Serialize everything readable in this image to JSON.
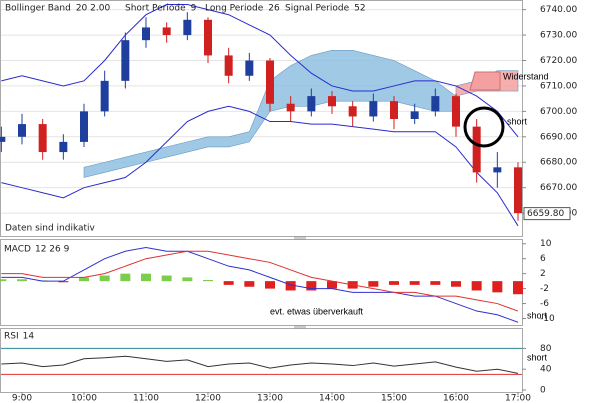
{
  "chart_data": [
    {
      "type": "candlestick",
      "header": [
        {
          "label": "Bollinger Band",
          "params": "20  2.00"
        },
        {
          "label": "Short Periode",
          "params": "9"
        },
        {
          "label": "Long Periode",
          "params": "26"
        },
        {
          "label": "Signal Periode",
          "params": "52"
        }
      ],
      "footnote": "Daten sind indikativ",
      "categories": [
        null,
        "9:00",
        null,
        null,
        "10:00",
        null,
        null,
        "11:00",
        null,
        null,
        "12:00",
        null,
        null,
        "13:00",
        null,
        null,
        "14:00",
        null,
        null,
        "15:00",
        null,
        null,
        "16:00",
        null,
        null,
        "17:00"
      ],
      "open": [
        6688,
        6690,
        6695,
        6684,
        6688,
        6700,
        6712,
        6728,
        6733,
        6730,
        6736,
        6722,
        6714,
        6720,
        6703,
        6700,
        6706,
        6702,
        6698,
        6704,
        6697,
        6700,
        6706,
        6694,
        6676,
        6678
      ],
      "high": [
        6694,
        6699,
        6697,
        6691,
        6703,
        6716,
        6731,
        6737,
        6735,
        6739,
        6737,
        6725,
        6723,
        6721,
        6706,
        6709,
        6708,
        6704,
        6707,
        6706,
        6703,
        6709,
        6707,
        6697,
        6684,
        6680
      ],
      "low": [
        6684,
        6687,
        6681,
        6681,
        6686,
        6698,
        6709,
        6725,
        6727,
        6728,
        6719,
        6711,
        6712,
        6700,
        6696,
        6698,
        6699,
        6694,
        6696,
        6693,
        6695,
        6698,
        6690,
        6672,
        6670,
        6657
      ],
      "close": [
        6690,
        6695,
        6684,
        6688,
        6700,
        6712,
        6728,
        6733,
        6730,
        6736,
        6722,
        6714,
        6720,
        6703,
        6700,
        6706,
        6702,
        6698,
        6704,
        6697,
        6700,
        6706,
        6694,
        6676,
        6678,
        6660
      ],
      "up_color": "#1f3f9f",
      "down_color": "#d02020",
      "bollinger": {
        "color": "#2a2ad0",
        "upper": [
          6712,
          6714,
          6712,
          6710,
          6712,
          6720,
          6730,
          6738,
          6742,
          6742,
          6740,
          6738,
          6734,
          6730,
          6722,
          6715,
          6710,
          6708,
          6708,
          6710,
          6712,
          6712,
          6710,
          6706,
          6700,
          6690
        ],
        "lower": [
          6672,
          6670,
          6668,
          6666,
          6670,
          6672,
          6674,
          6680,
          6688,
          6696,
          6700,
          6702,
          6700,
          6696,
          6696,
          6695,
          6695,
          6694,
          6693,
          6692,
          6692,
          6692,
          6686,
          6676,
          6668,
          6655
        ]
      },
      "clouds": [
        {
          "color": "#8fbfe0",
          "upper": [
            null,
            null,
            null,
            null,
            6678,
            6680,
            6682,
            6684,
            6686,
            6688,
            6690,
            6690,
            6692,
            6712,
            6718,
            6722,
            6724,
            6724,
            6722,
            6720,
            6716,
            6712,
            6706,
            null,
            null,
            null
          ],
          "lower": [
            null,
            null,
            null,
            null,
            6674,
            6676,
            6678,
            6680,
            6682,
            6684,
            6686,
            6686,
            6688,
            6700,
            6702,
            6702,
            6704,
            6704,
            6704,
            6704,
            6702,
            6700,
            6700,
            null,
            null,
            null
          ]
        },
        {
          "color": "#f4a0a0",
          "upper": [
            null,
            null,
            null,
            null,
            null,
            null,
            null,
            null,
            null,
            null,
            null,
            null,
            null,
            null,
            null,
            null,
            null,
            null,
            null,
            null,
            null,
            null,
            6710,
            6712,
            6716,
            6716
          ],
          "lower": [
            null,
            null,
            null,
            null,
            null,
            null,
            null,
            null,
            null,
            null,
            null,
            null,
            null,
            null,
            null,
            null,
            null,
            null,
            null,
            null,
            null,
            null,
            6706,
            6708,
            6708,
            6708
          ]
        }
      ],
      "ylim": [
        6651,
        6743
      ],
      "yticks": [
        {
          "value": 6660,
          "label": "6660.00"
        },
        {
          "value": 6670,
          "label": "6670.00"
        },
        {
          "value": 6680,
          "label": "6680.00"
        },
        {
          "value": 6690,
          "label": "6690.00"
        },
        {
          "value": 6700,
          "label": "6700.00"
        },
        {
          "value": 6710,
          "label": "6710.00"
        },
        {
          "value": 6720,
          "label": "6720.00"
        },
        {
          "value": 6730,
          "label": "6730.00"
        },
        {
          "value": 6740,
          "label": "6740.00"
        }
      ],
      "last_price": 6659.8,
      "last_price_label": "6659.80",
      "annotations": [
        "Widerstand",
        "short"
      ]
    },
    {
      "type": "macd",
      "title": "MACD",
      "params": "12 26 9",
      "series": [
        {
          "color": "#3030d0",
          "values": [
            1,
            1,
            0,
            0,
            3,
            6,
            8,
            9,
            8,
            8,
            6,
            4,
            3,
            1,
            -1,
            -2,
            -2,
            -3,
            -3,
            -3,
            -4,
            -4,
            -6,
            -8,
            -9,
            -11
          ]
        },
        {
          "color": "#e03030",
          "values": [
            2,
            2,
            1,
            1,
            1,
            2,
            4,
            6,
            7,
            8,
            8,
            7,
            6,
            5,
            3,
            1,
            0,
            -1,
            -2,
            -3,
            -3,
            -4,
            -4,
            -5,
            -6,
            -8
          ]
        }
      ],
      "histogram": [
        0.5,
        0.5,
        0.2,
        -0.3,
        1,
        1.5,
        2,
        2,
        1.5,
        1,
        0.3,
        -1,
        -1.5,
        -2,
        -2.5,
        -2.5,
        -2,
        -2,
        -1.5,
        -1,
        -1,
        -1,
        -1.5,
        -2.5,
        -3,
        -3.5
      ],
      "positive_color": "#7ccd4c",
      "negative_color": "#e02020",
      "ylim": [
        -12,
        11
      ],
      "yticks": [
        -10,
        -6,
        -2,
        2,
        6,
        10
      ],
      "annotations": [
        "evt. etwas überverkauft",
        "short"
      ]
    },
    {
      "type": "line",
      "title": "RSI",
      "params": "14",
      "color": "#333333",
      "values": [
        50,
        52,
        45,
        48,
        60,
        62,
        65,
        60,
        55,
        58,
        45,
        50,
        52,
        42,
        48,
        52,
        50,
        47,
        52,
        46,
        50,
        54,
        44,
        36,
        40,
        32
      ],
      "levels": [
        {
          "value": 80,
          "color": "#2a8a9a"
        },
        {
          "value": 30,
          "color": "#e03030"
        }
      ],
      "ylim": [
        0,
        100
      ],
      "yticks": [
        0,
        40,
        80
      ],
      "annotations": [
        "short"
      ]
    }
  ]
}
